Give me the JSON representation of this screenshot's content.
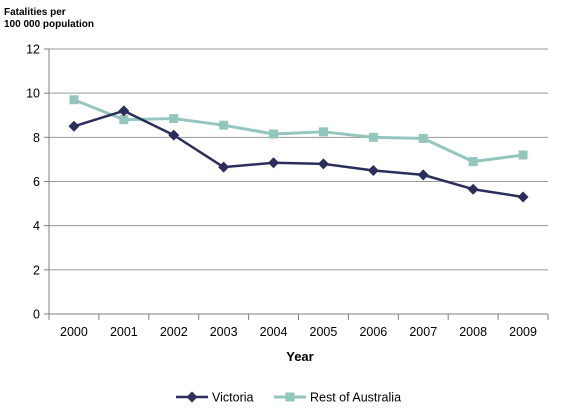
{
  "chart_data": {
    "type": "line",
    "ylabel_lines": [
      "Fatalities per",
      "100 000 population"
    ],
    "xlabel": "Year",
    "categories": [
      "2000",
      "2001",
      "2002",
      "2003",
      "2004",
      "2005",
      "2006",
      "2007",
      "2008",
      "2009"
    ],
    "ylim": [
      0,
      12
    ],
    "yticks": [
      0,
      2,
      4,
      6,
      8,
      10,
      12
    ],
    "grid": true,
    "legend_position": "bottom",
    "series": [
      {
        "name": "Victoria",
        "color": "#2b2d5b",
        "marker": "diamond",
        "values": [
          8.5,
          9.2,
          8.1,
          6.65,
          6.85,
          6.8,
          6.5,
          6.3,
          5.65,
          5.3
        ]
      },
      {
        "name": "Rest of Australia",
        "color": "#93c6bd",
        "marker": "square",
        "values": [
          9.7,
          8.8,
          8.85,
          8.55,
          8.15,
          8.25,
          8.0,
          7.95,
          6.9,
          7.2
        ]
      }
    ]
  }
}
